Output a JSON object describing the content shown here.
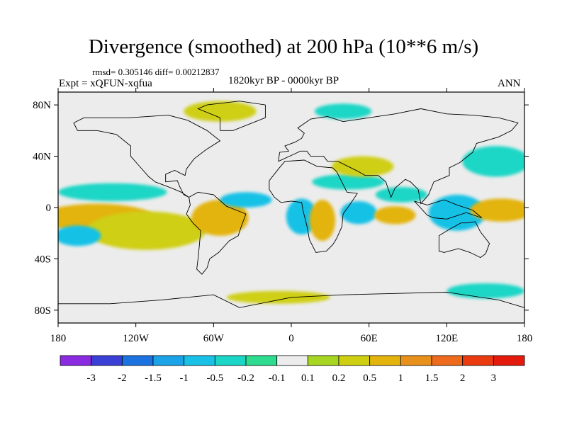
{
  "chart_data": {
    "type": "heatmap",
    "title": "Divergence (smoothed) at 200 hPa (10**6 m/s)",
    "stats": "rmsd= 0.305146 diff= 0.00212837",
    "experiment": "Expt = xQFUN-xqfua",
    "period": "1820kyr BP - 0000kyr BP",
    "season": "ANN",
    "x_ticks": [
      {
        "value": -180,
        "label": "180"
      },
      {
        "value": -120,
        "label": "120W"
      },
      {
        "value": -60,
        "label": "60W"
      },
      {
        "value": 0,
        "label": "0"
      },
      {
        "value": 60,
        "label": "60E"
      },
      {
        "value": 120,
        "label": "120E"
      },
      {
        "value": 180,
        "label": "180"
      }
    ],
    "y_ticks": [
      {
        "value": 80,
        "label": "80N"
      },
      {
        "value": 40,
        "label": "40N"
      },
      {
        "value": 0,
        "label": "0"
      },
      {
        "value": -40,
        "label": "40S"
      },
      {
        "value": -80,
        "label": "80S"
      }
    ],
    "xlim": [
      -180,
      180
    ],
    "ylim": [
      -90,
      90
    ],
    "colorbar": {
      "labels": [
        "-3",
        "-2",
        "-1.5",
        "-1",
        "-0.5",
        "-0.2",
        "-0.1",
        "0.1",
        "0.2",
        "0.5",
        "1",
        "1.5",
        "2",
        "3"
      ],
      "colors": [
        "#8a2be2",
        "#3a3fd6",
        "#1c72e0",
        "#1aa3e6",
        "#19c1e6",
        "#1bd6c6",
        "#2ddc8e",
        "#ececec",
        "#a6d621",
        "#cfcf12",
        "#e3b40d",
        "#e8901c",
        "#ee6a1c",
        "#ea3a10",
        "#e31a0c"
      ]
    },
    "anomalies": [
      {
        "lon": -142,
        "lat": -10,
        "rx": 28,
        "ry": 7,
        "level": "1.5"
      },
      {
        "lon": -150,
        "lat": -8,
        "rx": 44,
        "ry": 11,
        "level": "0.5"
      },
      {
        "lon": -112,
        "lat": -18,
        "rx": 46,
        "ry": 15,
        "level": "0.2"
      },
      {
        "lon": -165,
        "lat": -22,
        "rx": 18,
        "ry": 8,
        "level": "-0.5"
      },
      {
        "lon": -138,
        "lat": 12,
        "rx": 42,
        "ry": 7,
        "level": "-0.2"
      },
      {
        "lon": -55,
        "lat": -8,
        "rx": 22,
        "ry": 14,
        "level": "0.5"
      },
      {
        "lon": -35,
        "lat": 6,
        "rx": 20,
        "ry": 6,
        "level": "-0.5"
      },
      {
        "lon": 8,
        "lat": -7,
        "rx": 12,
        "ry": 14,
        "level": "-0.5"
      },
      {
        "lon": 24,
        "lat": -10,
        "rx": 10,
        "ry": 16,
        "level": "0.5"
      },
      {
        "lon": 44,
        "lat": 20,
        "rx": 28,
        "ry": 6,
        "level": "-0.2"
      },
      {
        "lon": 55,
        "lat": 32,
        "rx": 24,
        "ry": 8,
        "level": "0.2"
      },
      {
        "lon": 52,
        "lat": -4,
        "rx": 14,
        "ry": 9,
        "level": "-0.5"
      },
      {
        "lon": 80,
        "lat": -6,
        "rx": 16,
        "ry": 7,
        "level": "0.5"
      },
      {
        "lon": 85,
        "lat": 10,
        "rx": 20,
        "ry": 6,
        "level": "-0.2"
      },
      {
        "lon": 128,
        "lat": -4,
        "rx": 22,
        "ry": 14,
        "level": "-0.5"
      },
      {
        "lon": 170,
        "lat": -2,
        "rx": 13,
        "ry": 5,
        "level": "1.5"
      },
      {
        "lon": 162,
        "lat": -2,
        "rx": 24,
        "ry": 9,
        "level": "0.5"
      },
      {
        "lon": 158,
        "lat": 36,
        "rx": 26,
        "ry": 12,
        "level": "-0.2"
      },
      {
        "lon": 40,
        "lat": 75,
        "rx": 22,
        "ry": 6,
        "level": "-0.2"
      },
      {
        "lon": -55,
        "lat": 75,
        "rx": 28,
        "ry": 8,
        "level": "0.2"
      },
      {
        "lon": -10,
        "lat": -70,
        "rx": 40,
        "ry": 5,
        "level": "0.2"
      },
      {
        "lon": 150,
        "lat": -65,
        "rx": 30,
        "ry": 6,
        "level": "-0.2"
      }
    ]
  }
}
